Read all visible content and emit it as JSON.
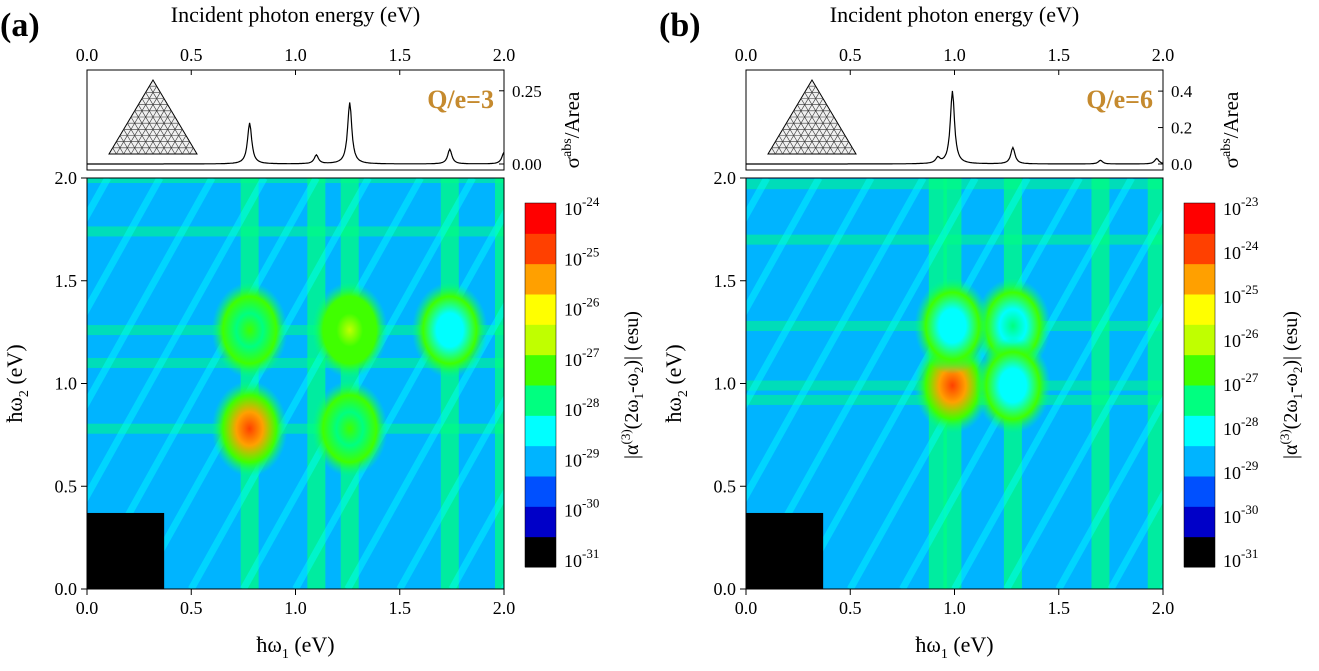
{
  "chart_data": [
    {
      "type": "heatmap",
      "panel_label": "(a)",
      "annotation": "Q/e=3",
      "top_axis_label": "Incident photon energy (eV)",
      "top_ticks": [
        "0.0",
        "0.5",
        "1.0",
        "1.5",
        "2.0"
      ],
      "spectrum": {
        "ylabel_main": "σ",
        "ylabel_sup": "abs",
        "ylabel_rest": "/Area",
        "ylim": [
          0,
          0.28
        ],
        "yticks": [
          "0.00",
          "0.25"
        ],
        "peaks": [
          {
            "x": 0.78,
            "y": 0.14
          },
          {
            "x": 1.1,
            "y": 0.03
          },
          {
            "x": 1.26,
            "y": 0.21
          },
          {
            "x": 1.74,
            "y": 0.05
          },
          {
            "x": 2.0,
            "y": 0.04
          }
        ]
      },
      "xlabel_pre": "ħω",
      "xlabel_sub": "1",
      "xlabel_post": " (eV)",
      "ylabel_pre": "ħω",
      "ylabel_sub": "2",
      "ylabel_post": " (eV)",
      "xlim": [
        0,
        2.0
      ],
      "ylim": [
        0,
        2.0
      ],
      "xticks": [
        "0.0",
        "0.5",
        "1.0",
        "1.5",
        "2.0"
      ],
      "yticks": [
        "0.0",
        "0.5",
        "1.0",
        "1.5",
        "2.0"
      ],
      "colorbar": {
        "exponents": [
          "-24",
          "-25",
          "-26",
          "-27",
          "-28",
          "-29",
          "-30",
          "-31"
        ],
        "label": "|α(3)(2ω1-ω2)| (esu)"
      },
      "hot_spots": [
        {
          "x": 0.78,
          "y": 0.78,
          "level": 0.95
        },
        {
          "x": 1.26,
          "y": 1.26,
          "level": 0.6
        },
        {
          "x": 1.26,
          "y": 0.78,
          "level": 0.5
        },
        {
          "x": 0.78,
          "y": 1.26,
          "level": 0.5
        },
        {
          "x": 1.74,
          "y": 1.26,
          "level": 0.4
        }
      ]
    },
    {
      "type": "heatmap",
      "panel_label": "(b)",
      "annotation": "Q/e=6",
      "top_axis_label": "Incident photon energy (eV)",
      "top_ticks": [
        "0.0",
        "0.5",
        "1.0",
        "1.5",
        "2.0"
      ],
      "spectrum": {
        "ylabel_main": "σ",
        "ylabel_sup": "abs",
        "ylabel_rest": "/Area",
        "ylim": [
          0,
          0.45
        ],
        "yticks": [
          "0.0",
          "0.2",
          "0.4"
        ],
        "peaks": [
          {
            "x": 0.92,
            "y": 0.03
          },
          {
            "x": 0.99,
            "y": 0.4
          },
          {
            "x": 1.28,
            "y": 0.09
          },
          {
            "x": 1.7,
            "y": 0.02
          },
          {
            "x": 1.97,
            "y": 0.03
          }
        ]
      },
      "xlabel_pre": "ħω",
      "xlabel_sub": "1",
      "xlabel_post": " (eV)",
      "ylabel_pre": "ħω",
      "ylabel_sub": "2",
      "ylabel_post": " (eV)",
      "xlim": [
        0,
        2.0
      ],
      "ylim": [
        0,
        2.0
      ],
      "xticks": [
        "0.0",
        "0.5",
        "1.0",
        "1.5",
        "2.0"
      ],
      "yticks": [
        "0.0",
        "0.5",
        "1.0",
        "1.5",
        "2.0"
      ],
      "colorbar": {
        "exponents": [
          "-23",
          "-24",
          "-25",
          "-26",
          "-27",
          "-28",
          "-29",
          "-30",
          "-31"
        ],
        "label": "|α(3)(2ω1-ω2)| (esu)"
      },
      "hot_spots": [
        {
          "x": 0.99,
          "y": 0.99,
          "level": 0.95
        },
        {
          "x": 1.28,
          "y": 1.28,
          "level": 0.45
        },
        {
          "x": 0.99,
          "y": 1.28,
          "level": 0.4
        },
        {
          "x": 1.28,
          "y": 0.99,
          "level": 0.4
        }
      ]
    }
  ],
  "colors": {
    "colormap": [
      "#000000",
      "#0000c8",
      "#0050ff",
      "#00b4ff",
      "#00ffff",
      "#00ff80",
      "#40ff00",
      "#c0ff00",
      "#ffff00",
      "#ffa000",
      "#ff4000",
      "#ff0000"
    ],
    "annotation": "#c58a2e",
    "background_level": 0.28
  }
}
